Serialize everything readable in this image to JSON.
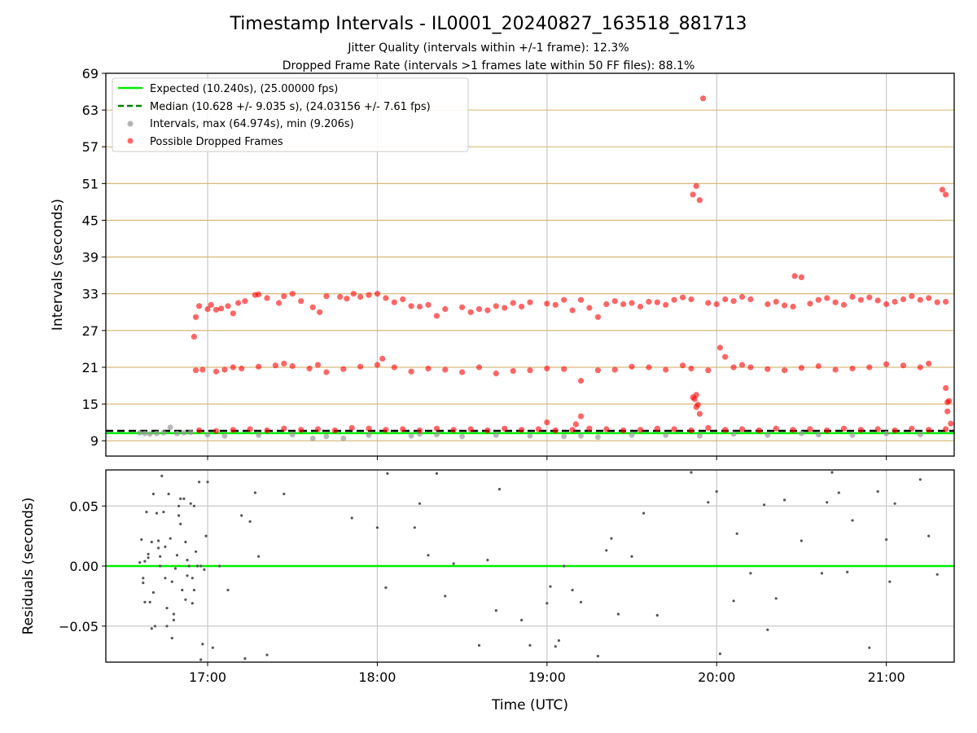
{
  "figure": {
    "title": "Timestamp Intervals - IL0001_20240827_163518_881713",
    "subtitle_1": "Jitter Quality (intervals within +/-1 frame): 12.3%",
    "subtitle_2": "Dropped Frame Rate (intervals >1 frames late within 50 FF files): 88.1%"
  },
  "chart_data": [
    {
      "type": "scatter",
      "panel": "intervals",
      "ylabel": "Intervals (seconds)",
      "xlim": [
        16.4,
        21.4
      ],
      "ylim": [
        6.5,
        69
      ],
      "yticks": [
        9,
        15,
        21,
        27,
        33,
        39,
        45,
        51,
        57,
        63,
        69
      ],
      "grid": {
        "horizontal_gold": true,
        "vertical": true
      },
      "legend": {
        "placement": "upper-left",
        "entries": [
          "Expected (10.240s), (25.00000 fps)",
          "Median (10.628 +/- 9.035 s), (24.03156 +/- 7.61 fps)",
          "Intervals, max (64.974s), min (9.206s)",
          "Possible Dropped Frames"
        ]
      },
      "expected": 10.24,
      "median": 10.628,
      "series": [
        {
          "name": "Intervals, max (64.974s), min (9.206s)",
          "color": "#9a9a9a",
          "x": [
            16.6,
            16.63,
            16.66,
            16.7,
            16.74,
            16.78,
            16.82,
            16.86,
            16.9,
            17.0,
            17.1,
            17.3,
            17.5,
            17.62,
            17.7,
            17.8,
            17.95,
            18.2,
            18.25,
            18.35,
            18.5,
            18.7,
            18.9,
            19.1,
            19.2,
            19.3,
            19.5,
            19.7,
            19.9,
            20.1,
            20.3,
            20.5,
            20.6,
            20.8,
            21.0,
            21.2
          ],
          "y": [
            10.3,
            10.2,
            10.1,
            10.2,
            10.3,
            11.2,
            10.2,
            10.3,
            10.4,
            10.0,
            9.8,
            9.9,
            10.0,
            9.4,
            9.7,
            9.4,
            9.9,
            9.8,
            10.1,
            10.0,
            9.7,
            9.9,
            9.8,
            9.7,
            9.8,
            9.6,
            9.9,
            9.9,
            9.8,
            10.1,
            9.9,
            10.2,
            10.0,
            9.9,
            10.2,
            10.0
          ]
        },
        {
          "name": "Possible Dropped Frames",
          "color": "#ff0000",
          "x": [
            16.92,
            16.93,
            16.95,
            17.0,
            17.02,
            17.05,
            17.08,
            17.12,
            17.15,
            17.18,
            17.22,
            17.28,
            17.3,
            17.35,
            17.42,
            17.45,
            17.5,
            17.55,
            17.62,
            17.66,
            17.7,
            17.78,
            17.82,
            17.86,
            17.9,
            17.95,
            18.0,
            18.05,
            18.1,
            18.15,
            18.2,
            18.25,
            18.3,
            18.35,
            18.4,
            18.5,
            18.55,
            18.6,
            18.65,
            18.7,
            18.75,
            18.8,
            18.85,
            18.9,
            19.0,
            19.05,
            19.1,
            19.15,
            19.2,
            19.25,
            19.3,
            19.35,
            19.4,
            19.45,
            19.5,
            19.55,
            19.6,
            19.65,
            19.7,
            19.75,
            19.8,
            19.85,
            19.95,
            20.0,
            20.05,
            20.1,
            20.15,
            20.2,
            20.3,
            20.35,
            20.4,
            20.45,
            20.5,
            20.55,
            20.6,
            20.65,
            20.7,
            20.75,
            20.8,
            20.85,
            20.9,
            20.95,
            21.0,
            21.05,
            21.1,
            21.15,
            21.2,
            21.25,
            21.3,
            21.35,
            16.93,
            16.97,
            17.05,
            17.1,
            17.15,
            17.2,
            17.3,
            17.4,
            17.45,
            17.5,
            17.6,
            17.65,
            17.7,
            17.8,
            17.9,
            18.0,
            18.03,
            18.1,
            18.2,
            18.3,
            18.4,
            18.5,
            18.6,
            18.7,
            18.8,
            18.9,
            19.0,
            19.1,
            19.2,
            19.3,
            19.4,
            19.5,
            19.6,
            19.7,
            19.8,
            19.85,
            19.95,
            20.05,
            20.1,
            20.15,
            20.2,
            20.3,
            20.4,
            20.5,
            20.6,
            20.7,
            20.8,
            20.9,
            21.0,
            21.1,
            21.2,
            21.25,
            21.35,
            16.95,
            17.05,
            17.15,
            17.25,
            17.35,
            17.45,
            17.55,
            17.65,
            17.75,
            17.85,
            17.95,
            18.05,
            18.15,
            18.25,
            18.35,
            18.45,
            18.55,
            18.65,
            18.75,
            18.85,
            18.95,
            19.05,
            19.15,
            19.25,
            19.35,
            19.45,
            19.55,
            19.65,
            19.75,
            19.85,
            19.95,
            20.05,
            20.15,
            20.25,
            20.35,
            20.45,
            20.55,
            20.65,
            20.75,
            20.85,
            20.95,
            21.05,
            21.15,
            21.25,
            21.35,
            19.86,
            19.88,
            19.9,
            19.92,
            19.86,
            19.87,
            19.88,
            19.88,
            19.9,
            19.89,
            20.02,
            20.46,
            21.33,
            21.35,
            21.36,
            21.37,
            21.38,
            21.36,
            19.0,
            19.17,
            19.2
          ],
          "y": [
            26.0,
            29.2,
            31.0,
            30.5,
            31.2,
            30.4,
            30.6,
            31.0,
            29.8,
            31.5,
            31.8,
            32.8,
            32.9,
            32.3,
            31.5,
            32.6,
            33.0,
            31.8,
            30.8,
            30.0,
            32.6,
            32.5,
            32.2,
            33.0,
            32.5,
            32.8,
            33.0,
            32.3,
            31.6,
            32.1,
            31.0,
            30.9,
            31.2,
            29.4,
            30.5,
            30.8,
            30.0,
            30.5,
            30.3,
            31.0,
            30.7,
            31.5,
            30.9,
            31.6,
            31.4,
            31.2,
            32.0,
            30.3,
            32.0,
            30.7,
            29.2,
            31.3,
            31.8,
            31.3,
            31.5,
            30.9,
            31.7,
            31.6,
            31.2,
            32.0,
            32.4,
            32.1,
            31.5,
            31.3,
            32.1,
            31.8,
            32.5,
            32.1,
            31.3,
            31.7,
            31.1,
            30.9,
            35.7,
            31.4,
            32.0,
            32.3,
            31.6,
            31.2,
            32.5,
            32.0,
            32.4,
            31.9,
            31.3,
            31.7,
            32.1,
            32.6,
            32.0,
            32.3,
            31.6,
            31.7,
            20.5,
            20.6,
            20.3,
            20.6,
            21.0,
            20.8,
            21.1,
            21.3,
            21.6,
            21.2,
            20.8,
            21.4,
            20.2,
            20.7,
            21.1,
            21.4,
            22.4,
            21.0,
            20.3,
            20.8,
            20.6,
            20.2,
            21.0,
            20.0,
            20.4,
            20.5,
            20.8,
            20.7,
            18.8,
            20.5,
            20.6,
            21.1,
            21.0,
            20.6,
            21.3,
            20.8,
            20.5,
            22.7,
            21.0,
            21.4,
            21.0,
            20.7,
            20.5,
            20.9,
            21.2,
            20.6,
            20.8,
            21.0,
            21.5,
            21.3,
            21.0,
            21.6,
            17.6,
            10.7,
            10.6,
            10.8,
            10.9,
            10.7,
            11.0,
            10.8,
            10.9,
            10.7,
            11.1,
            11.0,
            10.8,
            10.9,
            10.7,
            11.0,
            10.8,
            10.9,
            10.7,
            11.0,
            10.8,
            10.9,
            10.7,
            10.8,
            11.0,
            10.9,
            10.7,
            10.8,
            11.0,
            10.9,
            10.7,
            11.1,
            10.8,
            10.9,
            10.7,
            11.0,
            10.8,
            10.9,
            10.7,
            11.0,
            10.8,
            10.9,
            10.7,
            11.0,
            10.8,
            10.9,
            49.2,
            50.6,
            48.3,
            64.9,
            16.1,
            15.8,
            14.5,
            16.5,
            13.4,
            14.9,
            24.2,
            35.9,
            50.0,
            49.2,
            15.3,
            15.5,
            11.8,
            13.8,
            12.0,
            11.7,
            13.0
          ]
        }
      ]
    },
    {
      "type": "scatter",
      "panel": "residuals",
      "xlabel": "Time (UTC)",
      "ylabel": "Residuals (seconds)",
      "xlim": [
        16.4,
        21.4
      ],
      "ylim": [
        -0.08,
        0.08
      ],
      "xticks": [
        "17:00",
        "18:00",
        "19:00",
        "20:00",
        "21:00"
      ],
      "xtick_values": [
        17,
        18,
        19,
        20,
        21
      ],
      "yticks": [
        "−0.05",
        "0.00",
        "0.05"
      ],
      "ytick_values": [
        -0.05,
        0,
        0.05
      ],
      "zero_line_color": "#00ee00",
      "series": [
        {
          "name": "Residuals",
          "color": "#555555",
          "x": [
            16.6,
            16.61,
            16.62,
            16.63,
            16.64,
            16.65,
            16.66,
            16.67,
            16.68,
            16.69,
            16.7,
            16.71,
            16.72,
            16.73,
            16.74,
            16.75,
            16.76,
            16.77,
            16.78,
            16.79,
            16.8,
            16.81,
            16.82,
            16.83,
            16.84,
            16.85,
            16.86,
            16.87,
            16.88,
            16.89,
            16.9,
            16.91,
            16.92,
            16.93,
            16.94,
            16.95,
            16.96,
            16.97,
            16.98,
            16.99,
            16.62,
            16.65,
            16.68,
            16.72,
            16.76,
            16.8,
            16.84,
            16.88,
            16.92,
            16.96,
            16.63,
            16.67,
            16.71,
            16.75,
            16.79,
            16.83,
            16.87,
            16.91,
            17.0,
            17.03,
            17.07,
            17.12,
            17.2,
            17.22,
            17.25,
            17.28,
            17.3,
            17.35,
            17.45,
            17.85,
            18.0,
            18.05,
            18.06,
            18.22,
            18.25,
            18.3,
            18.35,
            18.4,
            18.45,
            18.6,
            18.65,
            18.7,
            18.72,
            18.85,
            18.9,
            19.0,
            19.02,
            19.05,
            19.07,
            19.1,
            19.15,
            19.2,
            19.3,
            19.35,
            19.38,
            19.42,
            19.5,
            19.57,
            19.65,
            19.85,
            19.95,
            20.0,
            20.02,
            20.1,
            20.12,
            20.2,
            20.28,
            20.3,
            20.35,
            20.4,
            20.5,
            20.62,
            20.65,
            20.68,
            20.72,
            20.77,
            20.8,
            20.9,
            20.95,
            21.0,
            21.02,
            21.05,
            21.2,
            21.25,
            21.3
          ],
          "y": [
            0.003,
            0.022,
            -0.01,
            0.004,
            0.045,
            0.01,
            -0.03,
            0.02,
            0.06,
            -0.05,
            0.044,
            0.021,
            0.0,
            0.075,
            0.045,
            0.016,
            -0.035,
            0.06,
            0.023,
            -0.06,
            -0.04,
            -0.002,
            0.009,
            0.05,
            0.056,
            -0.02,
            0.056,
            -0.028,
            0.005,
            0.0,
            0.052,
            -0.01,
            0.05,
            0.012,
            0.0,
            0.07,
            -0.078,
            -0.065,
            -0.003,
            0.025,
            -0.014,
            0.007,
            -0.022,
            0.008,
            -0.05,
            -0.045,
            0.035,
            -0.008,
            -0.02,
            0.0,
            -0.03,
            -0.052,
            0.015,
            -0.01,
            -0.013,
            0.042,
            0.02,
            -0.031,
            0.07,
            -0.068,
            0.0,
            -0.02,
            0.042,
            -0.077,
            0.037,
            0.061,
            0.008,
            -0.074,
            0.06,
            0.04,
            0.032,
            -0.018,
            0.077,
            0.032,
            0.052,
            0.009,
            0.077,
            -0.025,
            0.002,
            -0.066,
            0.005,
            -0.037,
            0.064,
            -0.045,
            -0.066,
            -0.031,
            -0.017,
            -0.067,
            -0.062,
            0.0,
            -0.02,
            -0.03,
            -0.075,
            0.013,
            0.023,
            -0.04,
            0.008,
            0.044,
            -0.041,
            0.078,
            0.053,
            0.062,
            -0.073,
            -0.029,
            0.027,
            -0.006,
            0.051,
            -0.053,
            -0.027,
            0.055,
            0.021,
            -0.006,
            0.053,
            0.078,
            0.061,
            -0.005,
            0.038,
            -0.068,
            0.062,
            0.022,
            -0.013,
            0.052,
            0.072,
            0.025,
            -0.007
          ]
        }
      ]
    }
  ]
}
